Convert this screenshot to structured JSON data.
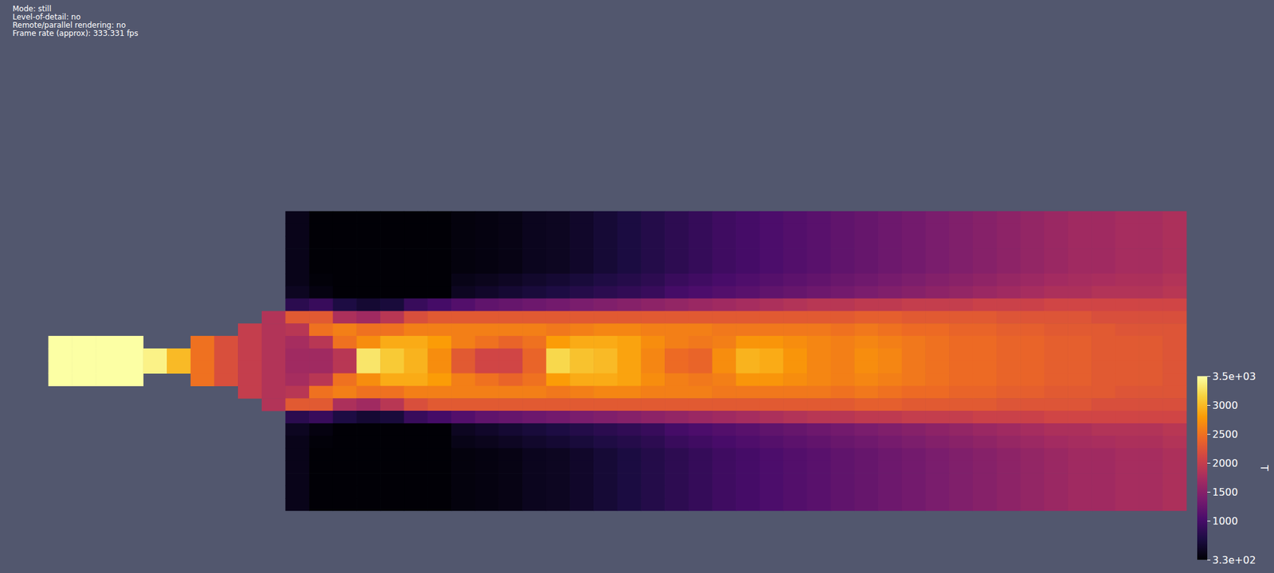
{
  "chart_data": {
    "type": "heatmap",
    "annotations": [
      "Mode: still",
      "Level-of-detail: no",
      "Remote/parallel rendering: no",
      "Frame rate (approx): 333.331 fps"
    ],
    "tick_labels": false,
    "cells": [
      [
        null,
        null,
        null,
        null,
        null,
        null,
        null,
        null,
        null,
        null,
        450,
        340,
        340,
        340,
        340,
        340,
        340,
        380,
        400,
        420,
        480,
        500,
        550,
        620,
        680,
        750,
        820,
        880,
        950,
        1000,
        1050,
        1100,
        1150,
        1200,
        1250,
        1300,
        1350,
        1400,
        1450,
        1500,
        1550,
        1600,
        1650,
        1700,
        1700,
        1750,
        1750,
        1800
      ],
      [
        null,
        null,
        null,
        null,
        null,
        null,
        null,
        null,
        null,
        null,
        450,
        340,
        340,
        340,
        340,
        340,
        340,
        380,
        400,
        420,
        480,
        500,
        550,
        620,
        680,
        750,
        820,
        880,
        950,
        1000,
        1050,
        1100,
        1150,
        1200,
        1250,
        1300,
        1350,
        1400,
        1450,
        1500,
        1550,
        1600,
        1650,
        1700,
        1700,
        1750,
        1750,
        1800
      ],
      [
        null,
        null,
        null,
        null,
        null,
        null,
        null,
        null,
        null,
        null,
        450,
        340,
        340,
        340,
        340,
        340,
        340,
        380,
        400,
        420,
        480,
        500,
        550,
        620,
        680,
        750,
        820,
        880,
        950,
        1000,
        1050,
        1100,
        1150,
        1200,
        1250,
        1300,
        1350,
        1400,
        1450,
        1500,
        1550,
        1600,
        1650,
        1700,
        1700,
        1750,
        1750,
        1800
      ],
      [
        null,
        null,
        null,
        null,
        null,
        null,
        null,
        null,
        null,
        null,
        450,
        340,
        340,
        340,
        340,
        340,
        340,
        380,
        400,
        420,
        480,
        500,
        550,
        620,
        680,
        750,
        820,
        880,
        950,
        1000,
        1050,
        1100,
        1150,
        1200,
        1250,
        1300,
        1350,
        1400,
        1450,
        1500,
        1550,
        1600,
        1650,
        1700,
        1700,
        1750,
        1750,
        1800
      ],
      [
        null,
        null,
        null,
        null,
        null,
        null,
        null,
        null,
        null,
        null,
        450,
        340,
        340,
        340,
        340,
        340,
        340,
        380,
        400,
        420,
        480,
        500,
        550,
        620,
        680,
        750,
        820,
        880,
        950,
        1000,
        1050,
        1100,
        1150,
        1200,
        1250,
        1300,
        1350,
        1400,
        1450,
        1500,
        1550,
        1600,
        1650,
        1700,
        1700,
        1750,
        1750,
        1800
      ],
      [
        null,
        null,
        null,
        null,
        null,
        null,
        null,
        null,
        null,
        null,
        450,
        360,
        340,
        340,
        340,
        340,
        340,
        440,
        470,
        510,
        560,
        600,
        650,
        710,
        760,
        820,
        910,
        960,
        1020,
        1070,
        1120,
        1170,
        1220,
        1270,
        1320,
        1370,
        1420,
        1470,
        1520,
        1570,
        1620,
        1670,
        1720,
        1750,
        1770,
        1800,
        1800,
        1850
      ],
      [
        null,
        null,
        null,
        null,
        null,
        null,
        null,
        null,
        null,
        null,
        500,
        400,
        340,
        340,
        340,
        340,
        340,
        500,
        550,
        600,
        650,
        700,
        750,
        800,
        850,
        900,
        1000,
        1050,
        1100,
        1150,
        1200,
        1250,
        1300,
        1350,
        1400,
        1450,
        1500,
        1550,
        1600,
        1650,
        1700,
        1750,
        1800,
        1800,
        1850,
        1850,
        1850,
        1900
      ],
      [
        null,
        null,
        null,
        null,
        null,
        null,
        null,
        null,
        null,
        null,
        800,
        900,
        700,
        600,
        650,
        900,
        1000,
        1100,
        1200,
        1250,
        1300,
        1350,
        1400,
        1450,
        1500,
        1550,
        1600,
        1650,
        1700,
        1750,
        1800,
        1850,
        1900,
        1900,
        1950,
        1950,
        2000,
        2000,
        2000,
        2050,
        2050,
        2050,
        2100,
        2100,
        2100,
        2100,
        2100,
        2100
      ],
      [
        null,
        null,
        null,
        null,
        null,
        null,
        null,
        null,
        null,
        1850,
        2300,
        2300,
        1800,
        1700,
        1900,
        2200,
        2300,
        2300,
        2300,
        2300,
        2300,
        2300,
        2300,
        2300,
        2300,
        2300,
        2300,
        2300,
        2300,
        2300,
        2300,
        2300,
        2300,
        2300,
        2350,
        2350,
        2300,
        2300,
        2300,
        2300,
        2250,
        2250,
        2250,
        2250,
        2200,
        2200,
        2200,
        2200
      ],
      [
        null,
        null,
        null,
        null,
        null,
        null,
        null,
        null,
        2000,
        1850,
        1900,
        2500,
        2600,
        2500,
        2500,
        2600,
        2600,
        2600,
        2600,
        2600,
        2600,
        2550,
        2600,
        2650,
        2650,
        2600,
        2600,
        2600,
        2550,
        2550,
        2550,
        2550,
        2550,
        2500,
        2550,
        2500,
        2450,
        2450,
        2400,
        2400,
        2350,
        2350,
        2300,
        2300,
        2300,
        2250,
        2250,
        2250
      ],
      [
        3500,
        3500,
        3500,
        3500,
        null,
        null,
        2500,
        2200,
        2000,
        1850,
        1750,
        1900,
        2500,
        2700,
        2900,
        2900,
        2800,
        2600,
        2500,
        2400,
        2500,
        2800,
        2900,
        2900,
        2850,
        2700,
        2600,
        2550,
        2600,
        2750,
        2750,
        2700,
        2650,
        2600,
        2650,
        2600,
        2550,
        2500,
        2450,
        2450,
        2400,
        2400,
        2350,
        2350,
        2300,
        2300,
        2300,
        2250
      ],
      [
        3500,
        3500,
        3500,
        3500,
        3400,
        3000,
        2500,
        2200,
        2000,
        1850,
        1700,
        1700,
        1900,
        3300,
        3100,
        2950,
        2700,
        2300,
        2100,
        2100,
        2400,
        3200,
        3050,
        3000,
        2850,
        2650,
        2450,
        2400,
        2700,
        2950,
        2900,
        2750,
        2650,
        2600,
        2700,
        2650,
        2550,
        2500,
        2450,
        2450,
        2400,
        2400,
        2350,
        2350,
        2300,
        2300,
        2300,
        2250
      ],
      [
        3500,
        3500,
        3500,
        3500,
        3400,
        3000,
        2500,
        2200,
        2000,
        1850,
        1700,
        1700,
        1900,
        3300,
        3100,
        2950,
        2700,
        2300,
        2100,
        2100,
        2400,
        3200,
        3050,
        3000,
        2850,
        2650,
        2450,
        2400,
        2700,
        2950,
        2900,
        2750,
        2650,
        2600,
        2700,
        2650,
        2550,
        2500,
        2450,
        2450,
        2400,
        2400,
        2350,
        2350,
        2300,
        2300,
        2300,
        2250
      ],
      [
        3500,
        3500,
        3500,
        3500,
        null,
        null,
        2500,
        2200,
        2000,
        1850,
        1750,
        1900,
        2500,
        2700,
        2900,
        2900,
        2800,
        2600,
        2500,
        2400,
        2500,
        2800,
        2900,
        2900,
        2850,
        2700,
        2600,
        2550,
        2600,
        2750,
        2750,
        2700,
        2650,
        2600,
        2650,
        2600,
        2550,
        2500,
        2450,
        2450,
        2400,
        2400,
        2350,
        2350,
        2300,
        2300,
        2300,
        2250
      ],
      [
        null,
        null,
        null,
        null,
        null,
        null,
        null,
        null,
        2000,
        1850,
        1900,
        2500,
        2600,
        2500,
        2500,
        2600,
        2600,
        2600,
        2600,
        2600,
        2600,
        2550,
        2600,
        2650,
        2650,
        2600,
        2600,
        2600,
        2550,
        2550,
        2550,
        2550,
        2550,
        2500,
        2550,
        2500,
        2450,
        2450,
        2400,
        2400,
        2350,
        2350,
        2300,
        2300,
        2300,
        2250,
        2250,
        2250
      ],
      [
        null,
        null,
        null,
        null,
        null,
        null,
        null,
        null,
        null,
        1850,
        2300,
        2300,
        1800,
        1700,
        1900,
        2200,
        2300,
        2300,
        2300,
        2300,
        2300,
        2300,
        2300,
        2300,
        2300,
        2300,
        2300,
        2300,
        2300,
        2300,
        2300,
        2300,
        2300,
        2300,
        2350,
        2350,
        2300,
        2300,
        2300,
        2300,
        2250,
        2250,
        2250,
        2250,
        2200,
        2200,
        2200,
        2200
      ],
      [
        null,
        null,
        null,
        null,
        null,
        null,
        null,
        null,
        null,
        null,
        800,
        900,
        700,
        600,
        650,
        900,
        1000,
        1100,
        1200,
        1250,
        1300,
        1350,
        1400,
        1450,
        1500,
        1550,
        1600,
        1650,
        1700,
        1750,
        1800,
        1850,
        1900,
        1900,
        1950,
        1950,
        2000,
        2000,
        2000,
        2050,
        2050,
        2050,
        2100,
        2100,
        2100,
        2100,
        2100,
        2100
      ],
      [
        null,
        null,
        null,
        null,
        null,
        null,
        null,
        null,
        null,
        null,
        500,
        400,
        340,
        340,
        340,
        340,
        340,
        500,
        550,
        600,
        650,
        700,
        750,
        800,
        850,
        900,
        1000,
        1050,
        1100,
        1150,
        1200,
        1250,
        1300,
        1350,
        1400,
        1450,
        1500,
        1550,
        1600,
        1650,
        1700,
        1750,
        1800,
        1800,
        1850,
        1850,
        1850,
        1900
      ],
      [
        null,
        null,
        null,
        null,
        null,
        null,
        null,
        null,
        null,
        null,
        450,
        360,
        340,
        340,
        340,
        340,
        340,
        440,
        470,
        510,
        560,
        600,
        650,
        710,
        760,
        820,
        910,
        960,
        1020,
        1070,
        1120,
        1170,
        1220,
        1270,
        1320,
        1370,
        1420,
        1470,
        1520,
        1570,
        1620,
        1670,
        1720,
        1750,
        1770,
        1800,
        1800,
        1850
      ],
      [
        null,
        null,
        null,
        null,
        null,
        null,
        null,
        null,
        null,
        null,
        450,
        340,
        340,
        340,
        340,
        340,
        340,
        380,
        400,
        420,
        480,
        500,
        550,
        620,
        680,
        750,
        820,
        880,
        950,
        1000,
        1050,
        1100,
        1150,
        1200,
        1250,
        1300,
        1350,
        1400,
        1450,
        1500,
        1550,
        1600,
        1650,
        1700,
        1700,
        1750,
        1750,
        1800
      ],
      [
        null,
        null,
        null,
        null,
        null,
        null,
        null,
        null,
        null,
        null,
        450,
        340,
        340,
        340,
        340,
        340,
        340,
        380,
        400,
        420,
        480,
        500,
        550,
        620,
        680,
        750,
        820,
        880,
        950,
        1000,
        1050,
        1100,
        1150,
        1200,
        1250,
        1300,
        1350,
        1400,
        1450,
        1500,
        1550,
        1600,
        1650,
        1700,
        1700,
        1750,
        1750,
        1800
      ],
      [
        null,
        null,
        null,
        null,
        null,
        null,
        null,
        null,
        null,
        null,
        450,
        340,
        340,
        340,
        340,
        340,
        340,
        380,
        400,
        420,
        480,
        500,
        550,
        620,
        680,
        750,
        820,
        880,
        950,
        1000,
        1050,
        1100,
        1150,
        1200,
        1250,
        1300,
        1350,
        1400,
        1450,
        1500,
        1550,
        1600,
        1650,
        1700,
        1700,
        1750,
        1750,
        1800
      ],
      [
        null,
        null,
        null,
        null,
        null,
        null,
        null,
        null,
        null,
        null,
        450,
        340,
        340,
        340,
        340,
        340,
        340,
        380,
        400,
        420,
        480,
        500,
        550,
        620,
        680,
        750,
        820,
        880,
        950,
        1000,
        1050,
        1100,
        1150,
        1200,
        1250,
        1300,
        1350,
        1400,
        1450,
        1500,
        1550,
        1600,
        1650,
        1700,
        1700,
        1750,
        1750,
        1800
      ],
      [
        null,
        null,
        null,
        null,
        null,
        null,
        null,
        null,
        null,
        null,
        450,
        340,
        340,
        340,
        340,
        340,
        340,
        380,
        400,
        420,
        480,
        500,
        550,
        620,
        680,
        750,
        820,
        880,
        950,
        1000,
        1050,
        1100,
        1150,
        1200,
        1250,
        1300,
        1350,
        1400,
        1450,
        1500,
        1550,
        1600,
        1650,
        1700,
        1700,
        1750,
        1750,
        1800
      ]
    ],
    "colorbar": {
      "title": "T",
      "range": [
        330,
        3500
      ],
      "ticks": [
        {
          "value": 330,
          "label": "3.3e+02"
        },
        1000,
        1500,
        2000,
        2500,
        3000,
        {
          "value": 3500,
          "label": "3.5e+03"
        }
      ]
    }
  }
}
